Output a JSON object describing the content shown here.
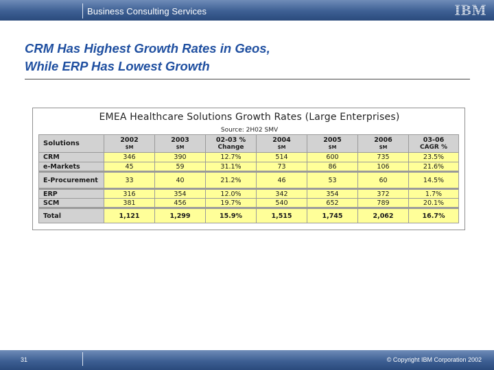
{
  "header": {
    "unit_name": "Business Consulting Services",
    "logo_text": "IBM"
  },
  "slide": {
    "title_line1": "CRM Has Highest Growth Rates in Geos,",
    "title_line2": "While ERP Has Lowest Growth"
  },
  "figure": {
    "title": "EMEA Healthcare Solutions Growth Rates (Large Enterprises)",
    "source": "Source: 2H02 SMV",
    "columns": [
      {
        "main": "Solutions",
        "sub": ""
      },
      {
        "main": "2002",
        "sub": "$M"
      },
      {
        "main": "2003",
        "sub": "$M"
      },
      {
        "main": "02-03 %",
        "sub": "Change"
      },
      {
        "main": "2004",
        "sub": "$M"
      },
      {
        "main": "2005",
        "sub": "$M"
      },
      {
        "main": "2006",
        "sub": "$M"
      },
      {
        "main": "03-06",
        "sub": "CAGR %"
      }
    ],
    "rows": [
      {
        "label": "CRM",
        "values": [
          "346",
          "390",
          "12.7%",
          "514",
          "600",
          "735",
          "23.5%"
        ]
      },
      {
        "label": "e-Markets",
        "values": [
          "45",
          "59",
          "31.1%",
          "73",
          "86",
          "106",
          "21.6%"
        ]
      },
      {
        "label": "E-Procurement",
        "values": [
          "33",
          "40",
          "21.2%",
          "46",
          "53",
          "60",
          "14.5%"
        ]
      },
      {
        "label": "ERP",
        "values": [
          "316",
          "354",
          "12.0%",
          "342",
          "354",
          "372",
          "1.7%"
        ]
      },
      {
        "label": "SCM",
        "values": [
          "381",
          "456",
          "19.7%",
          "540",
          "652",
          "789",
          "20.1%"
        ]
      },
      {
        "label": "Total",
        "values": [
          "1,121",
          "1,299",
          "15.9%",
          "1,515",
          "1,745",
          "2,062",
          "16.7%"
        ]
      }
    ]
  },
  "footer": {
    "page_number": "31",
    "copyright": "© Copyright IBM Corporation 2002"
  },
  "colors": {
    "bar": "#3d5f93",
    "title": "#1f4fa0",
    "cell_fill": "#ffff99",
    "header_fill": "#d2d2d2"
  }
}
